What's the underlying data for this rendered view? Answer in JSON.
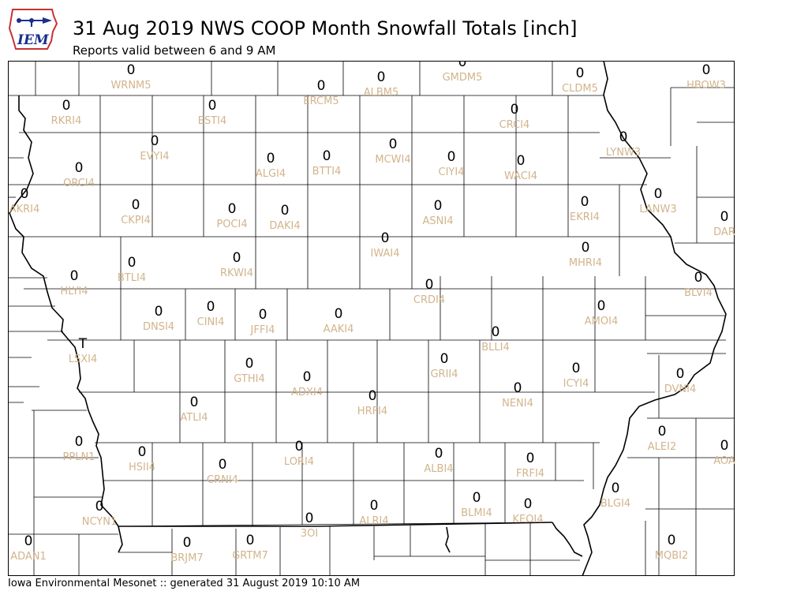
{
  "header": {
    "logo_text": "IEM",
    "title": "31 Aug 2019 NWS COOP Month Snowfall Totals [inch]",
    "subtitle": "Reports valid between 6 and 9 AM"
  },
  "footer": {
    "text": "Iowa Environmental Mesonet :: generated 31 August 2019 10:10 AM"
  },
  "colors": {
    "station_label": "#d2b48c",
    "value": "#000000",
    "county_lines": "#000000"
  },
  "stations": [
    {
      "id": "WRNM5",
      "value": "0"
    },
    {
      "id": "ERCM5",
      "value": "0"
    },
    {
      "id": "ALBM5",
      "value": "0"
    },
    {
      "id": "GMDM5",
      "value": "0"
    },
    {
      "id": "CLDM5",
      "value": "0"
    },
    {
      "id": "HBOW3",
      "value": "0"
    },
    {
      "id": "RKRI4",
      "value": "0"
    },
    {
      "id": "ESTI4",
      "value": "0"
    },
    {
      "id": "CRCI4",
      "value": "0"
    },
    {
      "id": "EVYI4",
      "value": "0"
    },
    {
      "id": "LYNW3",
      "value": "0"
    },
    {
      "id": "ORCI4",
      "value": "0"
    },
    {
      "id": "ALGI4",
      "value": "0"
    },
    {
      "id": "BTTI4",
      "value": "0"
    },
    {
      "id": "MCWI4",
      "value": "0"
    },
    {
      "id": "CIYI4",
      "value": "0"
    },
    {
      "id": "WACI4",
      "value": "0"
    },
    {
      "id": "AKRI4",
      "value": "0"
    },
    {
      "id": "CKPI4",
      "value": "0"
    },
    {
      "id": "POCI4",
      "value": "0"
    },
    {
      "id": "DAKI4",
      "value": "0"
    },
    {
      "id": "ASNI4",
      "value": "0"
    },
    {
      "id": "EKRI4",
      "value": "0"
    },
    {
      "id": "LANW3",
      "value": "0"
    },
    {
      "id": "DAR",
      "value": "0"
    },
    {
      "id": "IWAI4",
      "value": "0"
    },
    {
      "id": "BTLI4",
      "value": "0"
    },
    {
      "id": "RKWI4",
      "value": "0"
    },
    {
      "id": "MHRI4",
      "value": "0"
    },
    {
      "id": "HLYI4",
      "value": "0"
    },
    {
      "id": "CRDI4",
      "value": "0"
    },
    {
      "id": "BLVI4",
      "value": "0"
    },
    {
      "id": "DNSI4",
      "value": "0"
    },
    {
      "id": "CINI4",
      "value": "0"
    },
    {
      "id": "JFFI4",
      "value": "0"
    },
    {
      "id": "AAKI4",
      "value": "0"
    },
    {
      "id": "AMOI4",
      "value": "0"
    },
    {
      "id": "BLLI4",
      "value": "0"
    },
    {
      "id": "LSXI4",
      "value": "T"
    },
    {
      "id": "GTHI4",
      "value": "0"
    },
    {
      "id": "ADXI4",
      "value": "0"
    },
    {
      "id": "GRII4",
      "value": "0"
    },
    {
      "id": "ICYI4",
      "value": "0"
    },
    {
      "id": "DVNI4",
      "value": "0"
    },
    {
      "id": "HRFI4",
      "value": "0"
    },
    {
      "id": "NENI4",
      "value": "0"
    },
    {
      "id": "ATLI4",
      "value": "0"
    },
    {
      "id": "ALEI2",
      "value": "0"
    },
    {
      "id": "PPLN1",
      "value": "0"
    },
    {
      "id": "HSII4",
      "value": "0"
    },
    {
      "id": "LORI4",
      "value": "0"
    },
    {
      "id": "ALBI4",
      "value": "0"
    },
    {
      "id": "FRFI4",
      "value": "0"
    },
    {
      "id": "AOA",
      "value": "0"
    },
    {
      "id": "CRNI4",
      "value": "0"
    },
    {
      "id": "BLGI4",
      "value": "0"
    },
    {
      "id": "BLMI4",
      "value": "0"
    },
    {
      "id": "KEOI4",
      "value": "0"
    },
    {
      "id": "NCYN1",
      "value": "0"
    },
    {
      "id": "ALRI4",
      "value": "0"
    },
    {
      "id": "3OI",
      "value": "0"
    },
    {
      "id": "ADAN1",
      "value": "0"
    },
    {
      "id": "BRJM7",
      "value": "0"
    },
    {
      "id": "GRTM7",
      "value": "0"
    },
    {
      "id": "MQBI2",
      "value": "0"
    }
  ]
}
